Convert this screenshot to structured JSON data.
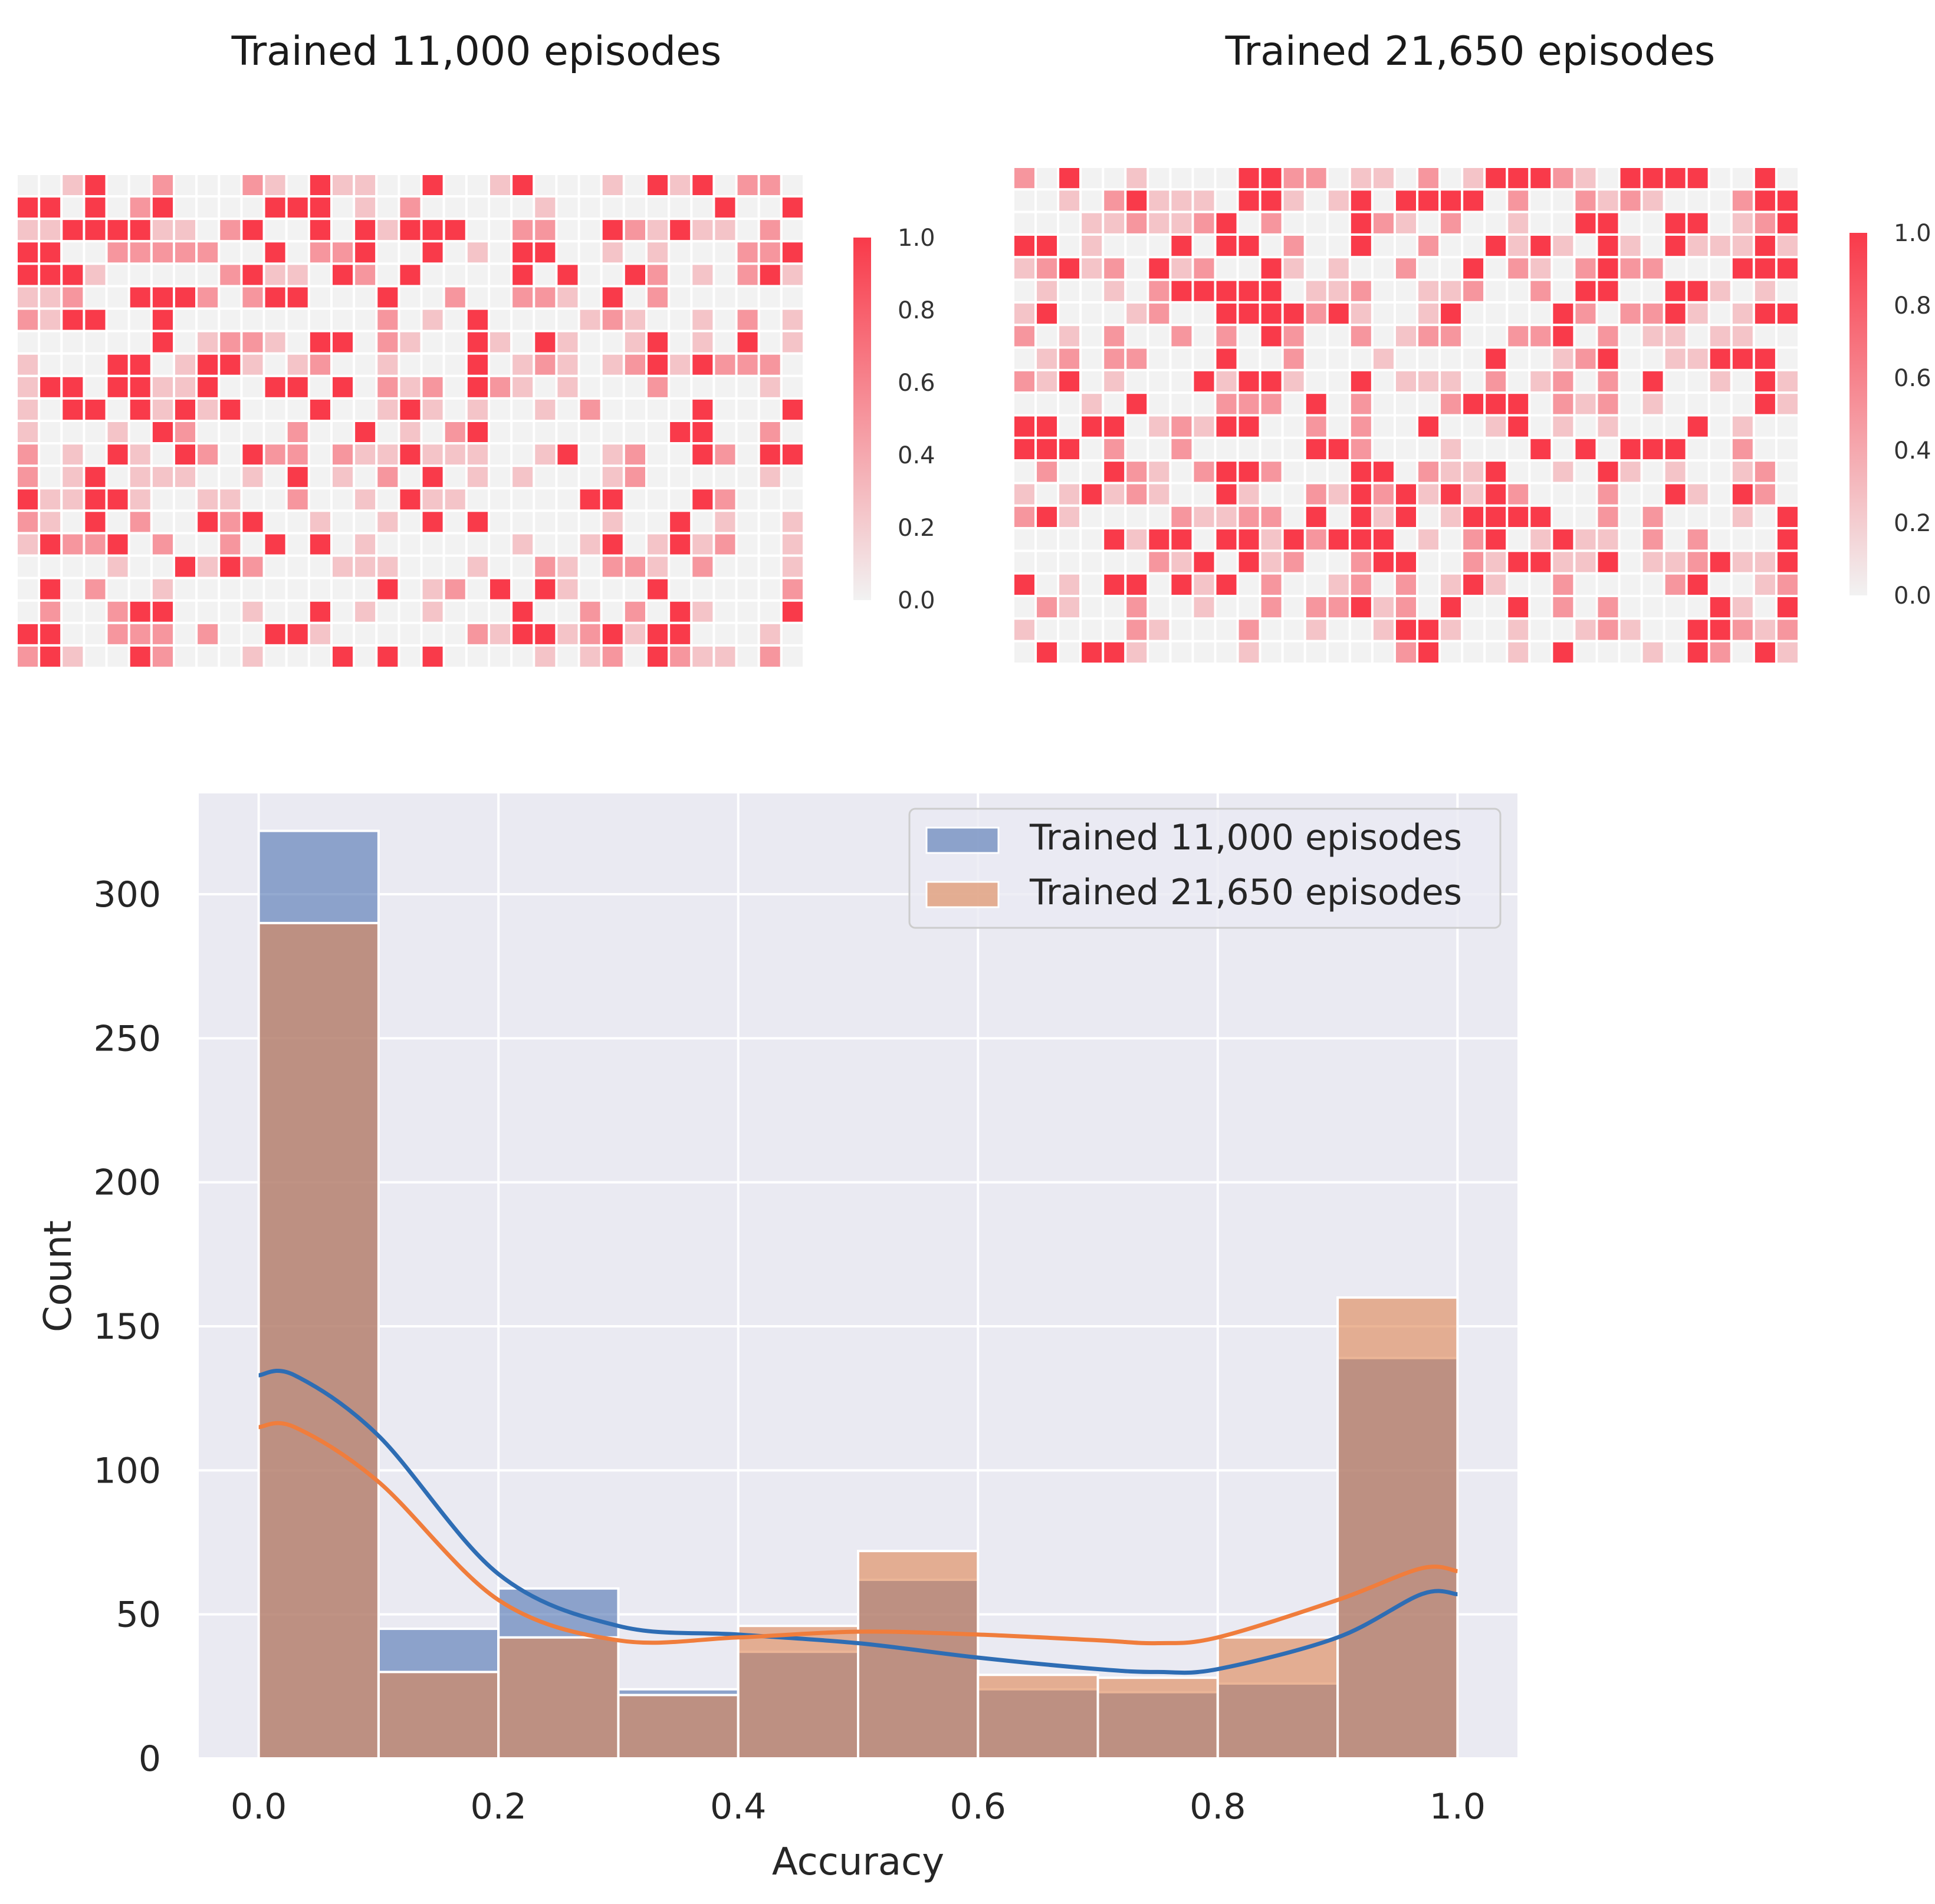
{
  "chart_data": [
    {
      "type": "heatmap",
      "title": "Trained 11,000 episodes",
      "rows": 22,
      "cols": 35,
      "value_range": [
        0.0,
        1.0
      ],
      "colormap": [
        "#f2f2f2",
        "#f93a4a"
      ],
      "colorbar_ticks": [
        "0.0",
        "0.2",
        "0.4",
        "0.6",
        "0.8",
        "1.0"
      ],
      "note": "Cell values sampled from the figure: 0.0 (grey) to 1.0 (red)",
      "seed": 11000,
      "mix": [
        0.52,
        0.16,
        0.13,
        0.19
      ]
    },
    {
      "type": "heatmap",
      "title": "Trained 21,650 episodes",
      "rows": 22,
      "cols": 35,
      "value_range": [
        0.0,
        1.0
      ],
      "colormap": [
        "#f2f2f2",
        "#f93a4a"
      ],
      "colorbar_ticks": [
        "0.0",
        "0.2",
        "0.4",
        "0.6",
        "0.8",
        "1.0"
      ],
      "note": "Cell values sampled from the figure: 0.0 (grey) to 1.0 (red)",
      "seed": 21650,
      "mix": [
        0.45,
        0.16,
        0.14,
        0.25
      ]
    },
    {
      "type": "histogram",
      "xlabel": "Accuracy",
      "ylabel": "Count",
      "xlim": [
        -0.05,
        1.05
      ],
      "ylim": [
        0,
        335
      ],
      "xticks": [
        "0.0",
        "0.2",
        "0.4",
        "0.6",
        "0.8",
        "1.0"
      ],
      "yticks": [
        "0",
        "50",
        "100",
        "150",
        "200",
        "250",
        "300"
      ],
      "bin_edges": [
        0.0,
        0.1,
        0.2,
        0.3,
        0.4,
        0.5,
        0.6,
        0.7,
        0.8,
        0.9,
        1.0
      ],
      "legend_position": "top-right",
      "series": [
        {
          "name": "Trained 11,000 episodes",
          "color": "#4c72b0",
          "line_color": "#2e6db4",
          "counts": [
            322,
            45,
            59,
            24,
            37,
            62,
            24,
            23,
            26,
            139
          ],
          "kde": {
            "x": [
              0.0,
              0.03,
              0.1,
              0.2,
              0.3,
              0.4,
              0.5,
              0.6,
              0.7,
              0.75,
              0.8,
              0.9,
              0.97,
              1.0
            ],
            "y": [
              133,
              133,
              112,
              64,
              46,
              43,
              40,
              35,
              31,
              30,
              31,
              42,
              57,
              57
            ]
          }
        },
        {
          "name": "Trained 21,650 episodes",
          "color": "#dd8452",
          "line_color": "#f07d3c",
          "counts": [
            290,
            30,
            42,
            22,
            46,
            72,
            29,
            28,
            42,
            160
          ],
          "kde": {
            "x": [
              0.0,
              0.03,
              0.1,
              0.2,
              0.3,
              0.4,
              0.5,
              0.6,
              0.7,
              0.75,
              0.8,
              0.9,
              0.97,
              1.0
            ],
            "y": [
              115,
              115,
              96,
              55,
              41,
              42,
              44,
              43,
              41,
              40,
              42,
              55,
              66,
              65
            ]
          }
        }
      ]
    }
  ]
}
